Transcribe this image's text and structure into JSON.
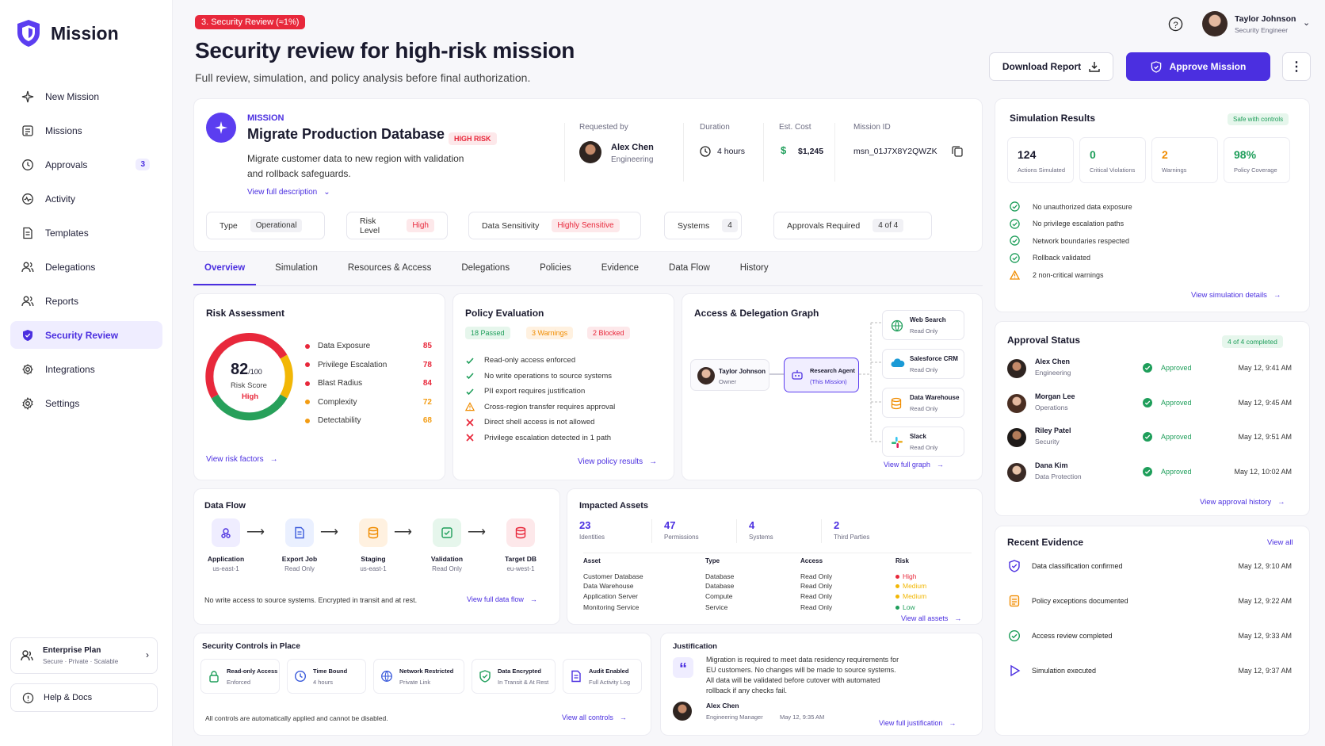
{
  "app": {
    "name": "Mission"
  },
  "sidebar": {
    "items": [
      {
        "label": "New Mission",
        "icon": "sparkle-icon"
      },
      {
        "label": "Missions",
        "icon": "list-icon"
      },
      {
        "label": "Approvals",
        "icon": "clock-icon",
        "badge": "3"
      },
      {
        "label": "Activity",
        "icon": "activity-icon"
      },
      {
        "label": "Templates",
        "icon": "document-icon"
      },
      {
        "label": "Delegations",
        "icon": "users-icon"
      },
      {
        "label": "Reports",
        "icon": "users-icon"
      },
      {
        "label": "Security Review",
        "icon": "shield-icon",
        "active": true
      },
      {
        "label": "Integrations",
        "icon": "gear-icon"
      },
      {
        "label": "Settings",
        "icon": "settings-icon"
      }
    ],
    "plan": {
      "title": "Enterprise Plan",
      "subtitle": "Secure · Private · Scalable"
    },
    "help": "Help & Docs"
  },
  "header": {
    "badge": "3. Security Review (≈1%)",
    "title": "Security review for high-risk mission",
    "subtitle": "Full review, simulation, and policy analysis before final authorization.",
    "user": {
      "name": "Taylor Johnson",
      "role": "Security Engineer"
    },
    "download_label": "Download Report",
    "approve_label": "Approve Mission"
  },
  "mission": {
    "kicker": "MISSION",
    "name": "Migrate Production Database",
    "risk_tag": "HIGH RISK",
    "desc1": "Migrate customer data to new region with validation",
    "desc2": "and rollback safeguards.",
    "view_desc": "View full description",
    "requested_label": "Requested by",
    "requester": "Alex Chen",
    "requester_dept": "Engineering",
    "duration_label": "Duration",
    "duration": "4 hours",
    "cost_label": "Est. Cost",
    "cost": "$1,245",
    "id_label": "Mission ID",
    "id": "msn_01J7X8Y2QWZK",
    "meta": [
      {
        "k": "Type",
        "v": "Operational"
      },
      {
        "k": "Risk Level",
        "v": "High"
      },
      {
        "k": "Data Sensitivity",
        "v": "Highly Sensitive"
      },
      {
        "k": "Systems",
        "v": "4"
      },
      {
        "k": "Approvals Required",
        "v": "4 of 4"
      }
    ]
  },
  "tabs": [
    "Overview",
    "Simulation",
    "Resources & Access",
    "Delegations",
    "Policies",
    "Evidence",
    "Data Flow",
    "History"
  ],
  "risk": {
    "title": "Risk Assessment",
    "score": "82",
    "of": "/100",
    "score_label": "Risk Score",
    "level": "High",
    "score_value": 82,
    "factors": [
      {
        "label": "Data Exposure",
        "value": "85",
        "color": "#e8283b"
      },
      {
        "label": "Privilege Escalation",
        "value": "78",
        "color": "#e8283b"
      },
      {
        "label": "Blast Radius",
        "value": "84",
        "color": "#e8283b"
      },
      {
        "label": "Complexity",
        "value": "72",
        "color": "#f39c12"
      },
      {
        "label": "Detectability",
        "value": "68",
        "color": "#f39c12"
      }
    ],
    "link": "View risk factors"
  },
  "policy": {
    "title": "Policy Evaluation",
    "passed": "18 Passed",
    "warnings": "3 Warnings",
    "blocked": "2 Blocked",
    "items": [
      {
        "t": "Read-only access enforced",
        "s": "ok"
      },
      {
        "t": "No write operations to source systems",
        "s": "ok"
      },
      {
        "t": "PII export requires justification",
        "s": "ok"
      },
      {
        "t": "Cross-region transfer requires approval",
        "s": "warn"
      },
      {
        "t": "Direct shell access is not allowed",
        "s": "block"
      },
      {
        "t": "Privilege escalation detected in 1 path",
        "s": "block"
      }
    ],
    "link": "View policy results"
  },
  "graph": {
    "title": "Access & Delegation Graph",
    "owner": "Taylor Johnson",
    "owner_role": "Owner",
    "agent": "Research Agent",
    "agent_sub": "(This Mission)",
    "targets": [
      {
        "name": "Web Search",
        "sub": "Read Only"
      },
      {
        "name": "Salesforce CRM",
        "sub": "Read Only"
      },
      {
        "name": "Data Warehouse",
        "sub": "Read Only"
      },
      {
        "name": "Slack",
        "sub": "Read Only"
      }
    ],
    "link": "View full graph"
  },
  "dataflow": {
    "title": "Data Flow",
    "steps": [
      {
        "name": "Application",
        "sub": "us-east-1"
      },
      {
        "name": "Export Job",
        "sub": "Read Only"
      },
      {
        "name": "Staging",
        "sub": "us-east-1"
      },
      {
        "name": "Validation",
        "sub": "Read Only"
      },
      {
        "name": "Target DB",
        "sub": "eu-west-1"
      }
    ],
    "note": "No write access to source systems. Encrypted in transit and at rest.",
    "link": "View full data flow"
  },
  "assets": {
    "title": "Impacted Assets",
    "stats": [
      {
        "n": "23",
        "l": "Identities"
      },
      {
        "n": "47",
        "l": "Permissions"
      },
      {
        "n": "4",
        "l": "Systems"
      },
      {
        "n": "2",
        "l": "Third Parties"
      }
    ],
    "headers": [
      "Asset",
      "Type",
      "Access",
      "Risk"
    ],
    "rows": [
      [
        "Customer Database",
        "Database",
        "Read Only",
        "High"
      ],
      [
        "Data Warehouse",
        "Database",
        "Read Only",
        "Medium"
      ],
      [
        "Application Server",
        "Compute",
        "Read Only",
        "Medium"
      ],
      [
        "Monitoring Service",
        "Service",
        "Read Only",
        "Low"
      ]
    ],
    "link": "View all assets"
  },
  "controls": {
    "title": "Security Controls in Place",
    "items": [
      {
        "t": "Read-only Access",
        "s": "Enforced"
      },
      {
        "t": "Time Bound",
        "s": "4 hours"
      },
      {
        "t": "Network Restricted",
        "s": "Private Link"
      },
      {
        "t": "Data Encrypted",
        "s": "In Transit & At Rest"
      },
      {
        "t": "Audit Enabled",
        "s": "Full Activity Log"
      }
    ],
    "note": "All controls are automatically applied and cannot be disabled.",
    "link": "View all controls"
  },
  "justification": {
    "title": "Justification",
    "l1": "Migration is required to meet data residency requirements for",
    "l2": "EU customers. No changes will be made to source systems.",
    "l3": "All data will be validated before cutover with automated",
    "l4": "rollback if any checks fail.",
    "author": "Alex Chen",
    "role": "Engineering Manager",
    "date": "May 12, 9:35 AM",
    "link": "View full justification"
  },
  "simulation": {
    "title": "Simulation Results",
    "badge": "Safe with controls",
    "stats": [
      {
        "n": "124",
        "l": "Actions Simulated",
        "c": "#1a1a2e"
      },
      {
        "n": "0",
        "l": "Critical Violations",
        "c": "#1e9e5a"
      },
      {
        "n": "2",
        "l": "Warnings",
        "c": "#f08c00"
      },
      {
        "n": "98%",
        "l": "Policy Coverage",
        "c": "#1e9e5a"
      }
    ],
    "checks": [
      {
        "t": "No unauthorized data exposure",
        "s": "ok"
      },
      {
        "t": "No privilege escalation paths",
        "s": "ok"
      },
      {
        "t": "Network boundaries respected",
        "s": "ok"
      },
      {
        "t": "Rollback validated",
        "s": "ok"
      },
      {
        "t": "2 non-critical warnings",
        "s": "warn"
      }
    ],
    "link": "View simulation details"
  },
  "approvals": {
    "title": "Approval Status",
    "badge": "4 of 4 completed",
    "people": [
      {
        "name": "Alex Chen",
        "dept": "Engineering",
        "status": "Approved",
        "time": "May 12, 9:41 AM"
      },
      {
        "name": "Morgan Lee",
        "dept": "Operations",
        "status": "Approved",
        "time": "May 12, 9:45 AM"
      },
      {
        "name": "Riley Patel",
        "dept": "Security",
        "status": "Approved",
        "time": "May 12, 9:51 AM"
      },
      {
        "name": "Dana Kim",
        "dept": "Data Protection",
        "status": "Approved",
        "time": "May 12, 10:02 AM"
      }
    ],
    "link": "View approval history"
  },
  "evidence": {
    "title": "Recent Evidence",
    "view_all": "View all",
    "items": [
      {
        "t": "Data classification confirmed",
        "time": "May 12, 9:10 AM",
        "c": "#4b2fe0"
      },
      {
        "t": "Policy exceptions documented",
        "time": "May 12, 9:22 AM",
        "c": "#f08c00"
      },
      {
        "t": "Access review completed",
        "time": "May 12, 9:33 AM",
        "c": "#1e9e5a"
      },
      {
        "t": "Simulation executed",
        "time": "May 12, 9:37 AM",
        "c": "#4b2fe0"
      }
    ]
  }
}
